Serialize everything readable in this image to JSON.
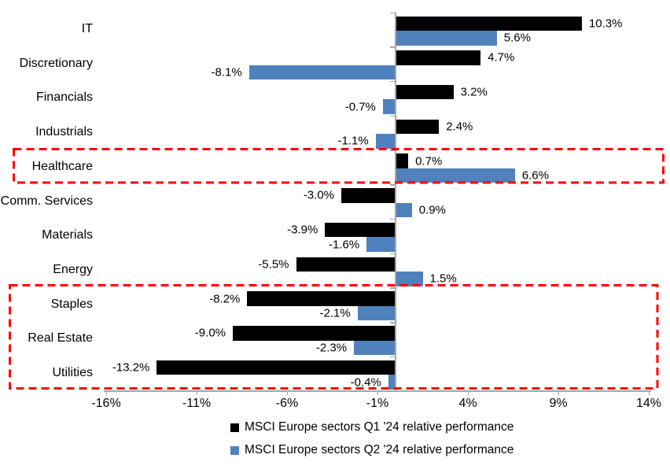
{
  "chart_data": {
    "type": "bar",
    "orientation": "horizontal",
    "title": "",
    "xlabel": "",
    "ylabel": "",
    "categories": [
      "IT",
      "Discretionary",
      "Financials",
      "Industrials",
      "Healthcare",
      "Comm. Services",
      "Materials",
      "Energy",
      "Staples",
      "Real Estate",
      "Utilities"
    ],
    "series": [
      {
        "name": "MSCI Europe sectors Q1 '24 relative performance",
        "color": "#000000",
        "values": [
          10.3,
          4.7,
          3.2,
          2.4,
          0.7,
          -3.0,
          -3.9,
          -5.5,
          -8.2,
          -9.0,
          -13.2
        ],
        "labels": [
          "10.3%",
          "4.7%",
          "3.2%",
          "2.4%",
          "0.7%",
          "-3.0%",
          "-3.9%",
          "-5.5%",
          "-8.2%",
          "-9.0%",
          "-13.2%"
        ]
      },
      {
        "name": "MSCI Europe sectors Q2 '24 relative performance",
        "color": "#4F81BD",
        "values": [
          5.6,
          -8.1,
          -0.7,
          -1.1,
          6.6,
          0.9,
          -1.6,
          1.5,
          -2.1,
          -2.3,
          -0.4
        ],
        "labels": [
          "5.6%",
          "-8.1%",
          "-0.7%",
          "-1.1%",
          "6.6%",
          "0.9%",
          "-1.6%",
          "1.5%",
          "-2.1%",
          "-2.3%",
          "-0.4%"
        ]
      }
    ],
    "x_ticks": [
      {
        "value": -16,
        "label": "-16%"
      },
      {
        "value": -11,
        "label": "-11%"
      },
      {
        "value": -6,
        "label": "-6%"
      },
      {
        "value": -1,
        "label": "-1%"
      },
      {
        "value": 4,
        "label": "4%"
      },
      {
        "value": 9,
        "label": "9%"
      },
      {
        "value": 14,
        "label": "14%"
      }
    ],
    "xlim": [
      -16.1,
      14.1
    ],
    "grid": false,
    "legend_position": "bottom",
    "highlight_boxes": [
      {
        "rows": [
          "Healthcare"
        ],
        "color": "#FF0000",
        "style": "dashed"
      },
      {
        "rows": [
          "Staples",
          "Real Estate",
          "Utilities"
        ],
        "color": "#FF0000",
        "style": "dashed"
      }
    ]
  },
  "colors": {
    "q1_bar": "#000000",
    "q2_bar": "#4F81BD",
    "highlight": "#FF0000",
    "axis": "#A6A6A6",
    "text": "#000000",
    "background": "#FFFFFF"
  },
  "legend": {
    "items": [
      {
        "label": "MSCI Europe sectors Q1 '24 relative performance",
        "color": "#000000"
      },
      {
        "label": "MSCI Europe sectors Q2 '24 relative performance",
        "color": "#4F81BD"
      }
    ]
  }
}
